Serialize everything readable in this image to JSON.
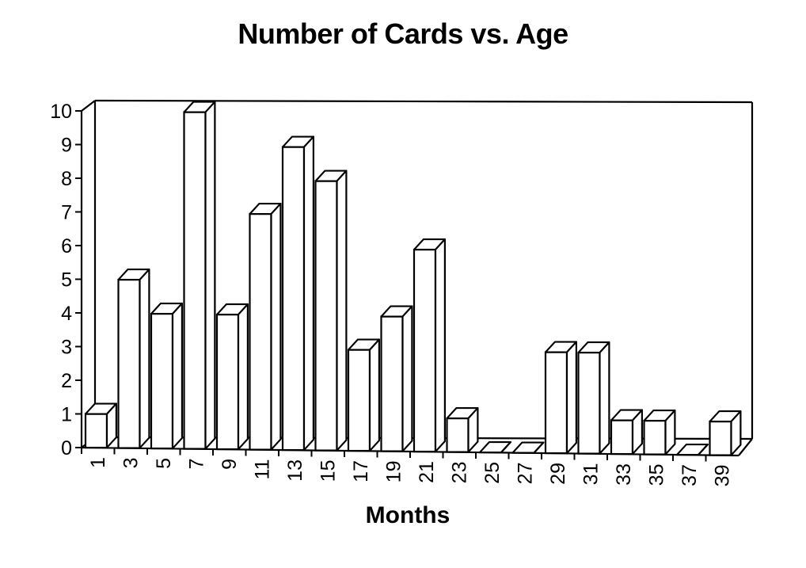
{
  "chart_data": {
    "type": "bar",
    "title": "Number of Cards vs. Age",
    "xlabel": "Months",
    "ylabel": "",
    "ylim": [
      0,
      10
    ],
    "yticks": [
      0,
      1,
      2,
      3,
      4,
      5,
      6,
      7,
      8,
      9,
      10
    ],
    "categories": [
      "1",
      "3",
      "5",
      "7",
      "9",
      "11",
      "13",
      "15",
      "17",
      "19",
      "21",
      "23",
      "25",
      "27",
      "29",
      "31",
      "33",
      "35",
      "37",
      "39"
    ],
    "values": [
      1,
      5,
      4,
      10,
      4,
      7,
      9,
      8,
      3,
      4,
      6,
      1,
      0,
      0,
      3,
      3,
      1,
      1,
      0,
      1
    ],
    "style": "3d",
    "grid": false,
    "bar_fill": "#ffffff",
    "bar_stroke": "#000000"
  }
}
